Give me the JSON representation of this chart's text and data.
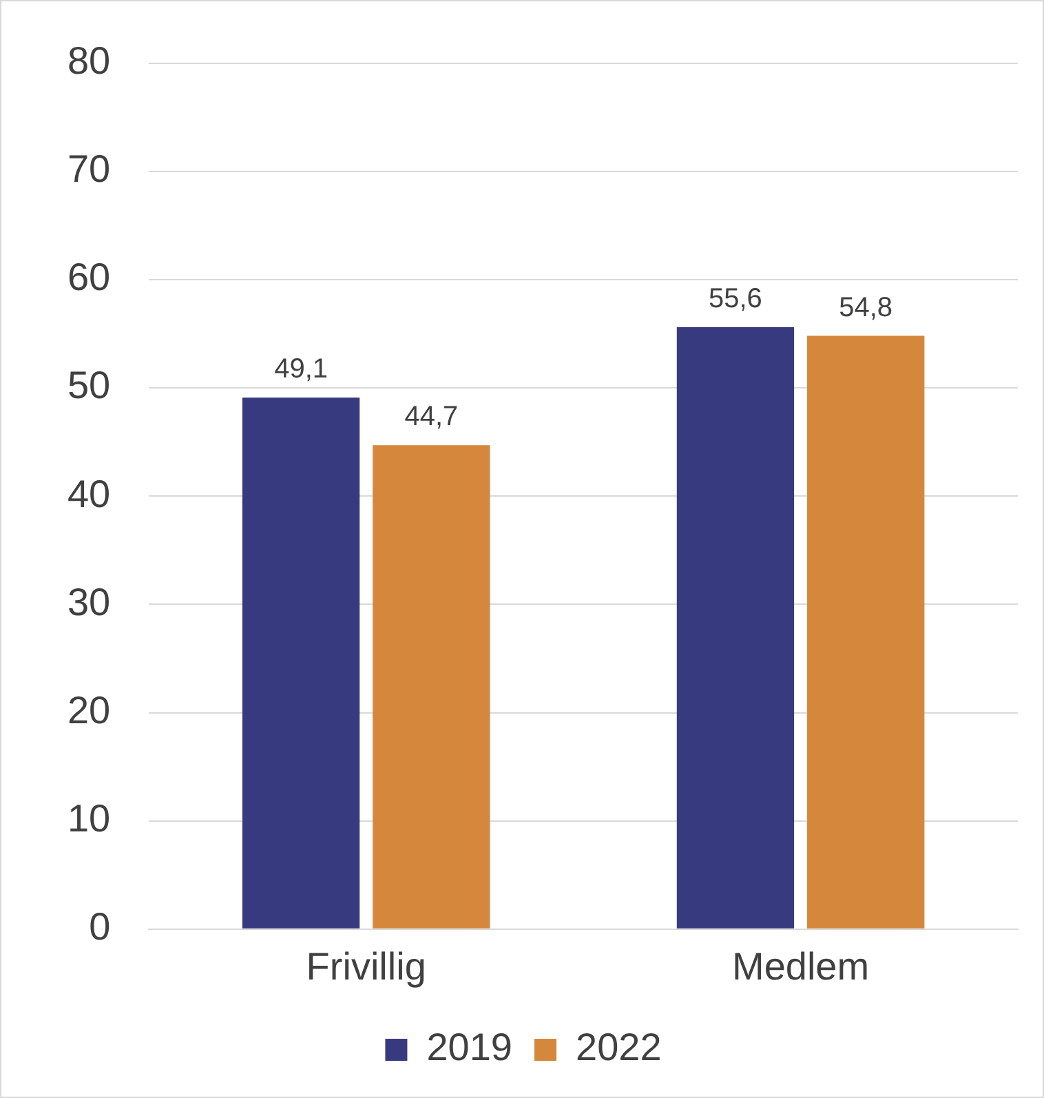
{
  "chart_data": {
    "type": "bar",
    "categories": [
      "Frivillig",
      "Medlem"
    ],
    "series": [
      {
        "name": "2019",
        "color": "#383a80",
        "values": [
          49.1,
          55.6
        ],
        "value_labels": [
          "49,1",
          "55,6"
        ]
      },
      {
        "name": "2022",
        "color": "#d5873b",
        "values": [
          44.7,
          54.8
        ],
        "value_labels": [
          "44,7",
          "54,8"
        ]
      }
    ],
    "ylim": [
      0,
      80
    ],
    "yticks": [
      0,
      10,
      20,
      30,
      40,
      50,
      60,
      70,
      80
    ],
    "grid": "y",
    "legend": "bottom"
  }
}
